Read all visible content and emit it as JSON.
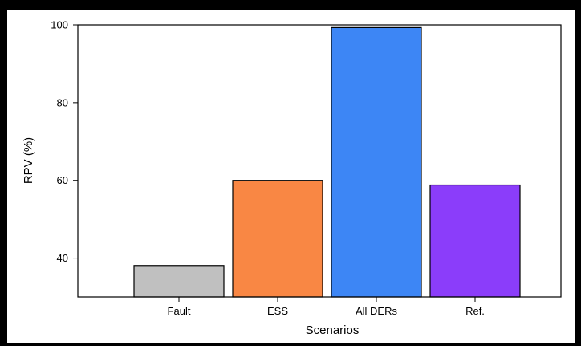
{
  "chart_data": {
    "type": "bar",
    "title": "",
    "xlabel": "Scenarios",
    "ylabel": "RPV (%)",
    "categories": [
      "Fault",
      "ESS",
      "All DERs",
      "Ref."
    ],
    "values": [
      38.1,
      60.0,
      99.3,
      58.8
    ],
    "colors": [
      "#c0c0c0",
      "#f98744",
      "#3d86f5",
      "#8b3dfa"
    ],
    "ylim": [
      30,
      100
    ],
    "yticks": [
      40,
      60,
      80,
      100
    ],
    "grid": false,
    "legend": "none"
  }
}
